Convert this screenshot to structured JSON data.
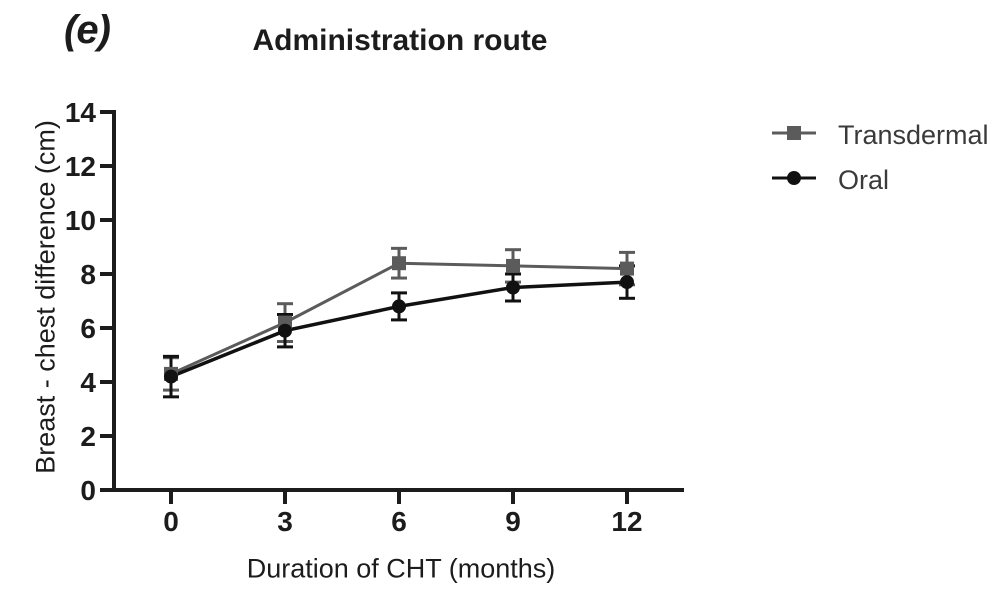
{
  "figure": {
    "panel_label": "(e)",
    "background": "#ffffff"
  },
  "chart_data": {
    "type": "line",
    "title": "Administration route",
    "xlabel": "Duration of CHT (months)",
    "ylabel": "Breast - chest difference (cm)",
    "x": [
      0,
      3,
      6,
      9,
      12
    ],
    "xticks": [
      0,
      3,
      6,
      9,
      12
    ],
    "yticks": [
      0,
      2,
      4,
      6,
      8,
      10,
      12,
      14
    ],
    "xlim": [
      0,
      13.5
    ],
    "ylim": [
      0,
      14
    ],
    "grid": false,
    "error_bars": true,
    "legend_position": "right-outside",
    "series": [
      {
        "name": "Transdermal",
        "marker": "square",
        "color": "#5b5b5b",
        "values": [
          4.3,
          6.2,
          8.4,
          8.3,
          8.2
        ],
        "errors": [
          0.6,
          0.7,
          0.55,
          0.6,
          0.6
        ]
      },
      {
        "name": "Oral",
        "marker": "circle",
        "color": "#111111",
        "values": [
          4.2,
          5.9,
          6.8,
          7.5,
          7.7
        ],
        "errors": [
          0.75,
          0.6,
          0.5,
          0.5,
          0.6
        ]
      }
    ],
    "colors": {
      "axis": "#1c1c1c",
      "tick_text": "#1c1c1c",
      "legend_text": "#3a3a3a"
    }
  }
}
